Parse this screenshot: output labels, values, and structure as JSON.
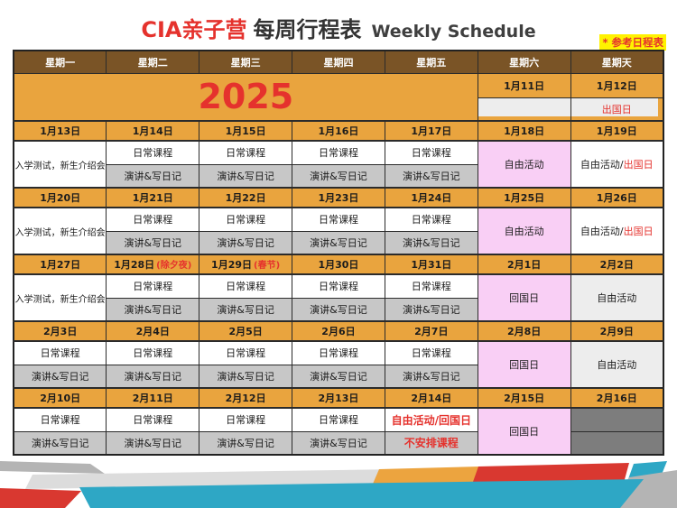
{
  "page": {
    "title_brand": "CIA亲子营",
    "title_main": "每周行程表",
    "title_sub": "Weekly Schedule",
    "ref_note": "* 参考日程表"
  },
  "table": {
    "day_headers": [
      "星期一",
      "星期二",
      "星期三",
      "星期四",
      "星期五",
      "星期六",
      "星期天"
    ],
    "year": "2025",
    "pre_week": {
      "sat_date": "1月11日",
      "sun_date": "1月12日",
      "sat_label": "",
      "sun_label": "出国日"
    },
    "labels": {
      "orientation": "入学测试，新生介绍会",
      "daily_class": "日常课程",
      "speech_diary": "演讲&写日记",
      "free_activity": "自由活动",
      "free_prefix": "自由活动/",
      "departure_day": "出国日",
      "return_day": "回国日",
      "free_or_return": "自由活动/回国日",
      "no_class": "不安排课程"
    },
    "weeks": [
      {
        "dates": [
          "1月13日",
          "1月14日",
          "1月15日",
          "1月16日",
          "1月17日",
          "1月18日",
          "1月19日"
        ]
      },
      {
        "dates": [
          "1月20日",
          "1月21日",
          "1月22日",
          "1月23日",
          "1月24日",
          "1月25日",
          "1月26日"
        ]
      },
      {
        "dates": [
          "1月27日",
          "1月28日",
          "1月29日",
          "1月30日",
          "1月31日",
          "2月1日",
          "2月2日"
        ],
        "notes": [
          "",
          "(除夕夜)",
          "(春节)",
          "",
          "",
          "",
          ""
        ]
      },
      {
        "dates": [
          "2月3日",
          "2月4日",
          "2月5日",
          "2月6日",
          "2月7日",
          "2月8日",
          "2月9日"
        ]
      },
      {
        "dates": [
          "2月10日",
          "2月11日",
          "2月12日",
          "2月13日",
          "2月14日",
          "2月15日",
          "2月16日"
        ]
      }
    ]
  },
  "colors": {
    "header_brown": "#7a5426",
    "orange": "#e9a43e",
    "pink": "#f9cff5",
    "gray_pm": "#c7c7c7",
    "light_gray": "#ededed",
    "dark_gray": "#7d7d7d",
    "red": "#e5322d",
    "highlight_yellow": "#fff200",
    "ribbon_teal": "#2ea7c5",
    "ribbon_red": "#d93830",
    "ribbon_gray": "#b4b4b4",
    "ribbon_lightgray": "#dcdcdc"
  }
}
